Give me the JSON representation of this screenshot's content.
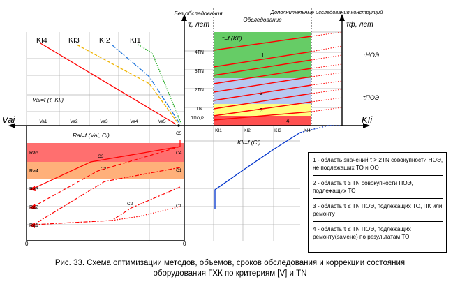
{
  "headers": {
    "no_survey": "Без обследования",
    "survey": "Обследование",
    "extra_research": "Дополнительные исследования конструкций"
  },
  "axes": {
    "tau_label": "τ, лет",
    "tau_f_label": "τф, лет",
    "va_label": "Vai",
    "ki_label": "KIi",
    "tau_noe": "τНОЭ",
    "tau_poe": "τПОЭ",
    "origin_left": "0",
    "origin_center": "0"
  },
  "ki_curves": [
    "KI4",
    "KI3",
    "KI2",
    "KI1"
  ],
  "formulas": {
    "va": "Vai=f (τ, KIi)",
    "ra": "Rai=f (Vai, Ci)",
    "ki": "KIi=f (Ci)",
    "tau": "τ=f (KIi)"
  },
  "tau_ticks": [
    "4TN",
    "3TN",
    "2TN",
    "TN",
    "TПО,Р"
  ],
  "va_ticks": [
    "Va1",
    "Va2",
    "Va3",
    "Va4",
    "Va5"
  ],
  "ki_ticks": [
    "KI1",
    "KI2",
    "KI3",
    "KI4"
  ],
  "ra_ticks": [
    "Ra5",
    "Ra4",
    "Ra3",
    "Ra2",
    "Ra1"
  ],
  "c_labels": [
    "C5",
    "C4",
    "C3",
    "C2",
    "C1",
    "C2",
    "C1"
  ],
  "region_labels": [
    "1",
    "2",
    "3",
    "4"
  ],
  "legend": [
    "1 - область значений τ > 2TN совокупности НОЭ, не подлежащих ТО и ОО",
    "2 - область τ ≥ TN совокупности ПОЭ, подлежащих ТО",
    "3 - область τ ≤ TN ПОЭ, подлежащих ТО, ПК или ремонту",
    "4 - область τ ≤ TN ПОЭ, подлежащих ремонту(замене) по результатам ТО"
  ],
  "caption_line1": "Рис. 33. Схема оптимизации методов, объемов, сроков обследования и коррекции состояния",
  "caption_line2": "оборудования ГХК по критериям [V] и TN",
  "colors": {
    "green": "#66cc66",
    "blue_band": "#b8c8f0",
    "yellow": "#ffff80",
    "red_band": "#ff5050",
    "red_zone": "#ff6f6f",
    "orange_zone": "#ffb07a",
    "line_red": "#ff0000",
    "line_blue": "#0033cc"
  }
}
